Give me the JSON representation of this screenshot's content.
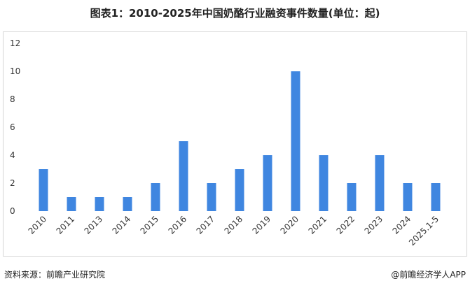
{
  "chart_data": {
    "type": "bar",
    "title": "图表1：2010-2025年中国奶酪行业融资事件数量(单位：起)",
    "categories": [
      "2010",
      "2011",
      "2013",
      "2014",
      "2015",
      "2016",
      "2017",
      "2018",
      "2019",
      "2020",
      "2021",
      "2022",
      "2023",
      "2024",
      "2025.1-5"
    ],
    "values": [
      3,
      1,
      1,
      1,
      2,
      5,
      2,
      3,
      4,
      10,
      4,
      2,
      4,
      2,
      2
    ],
    "ylim": [
      0,
      12
    ],
    "yticks": [
      0,
      2,
      4,
      6,
      8,
      10,
      12
    ],
    "grid": false,
    "bar_color": "#3f86e0",
    "xlabel": "",
    "ylabel": ""
  },
  "footer": {
    "source": "资料来源：前瞻产业研究院",
    "brand": "@前瞻经济学人APP"
  }
}
